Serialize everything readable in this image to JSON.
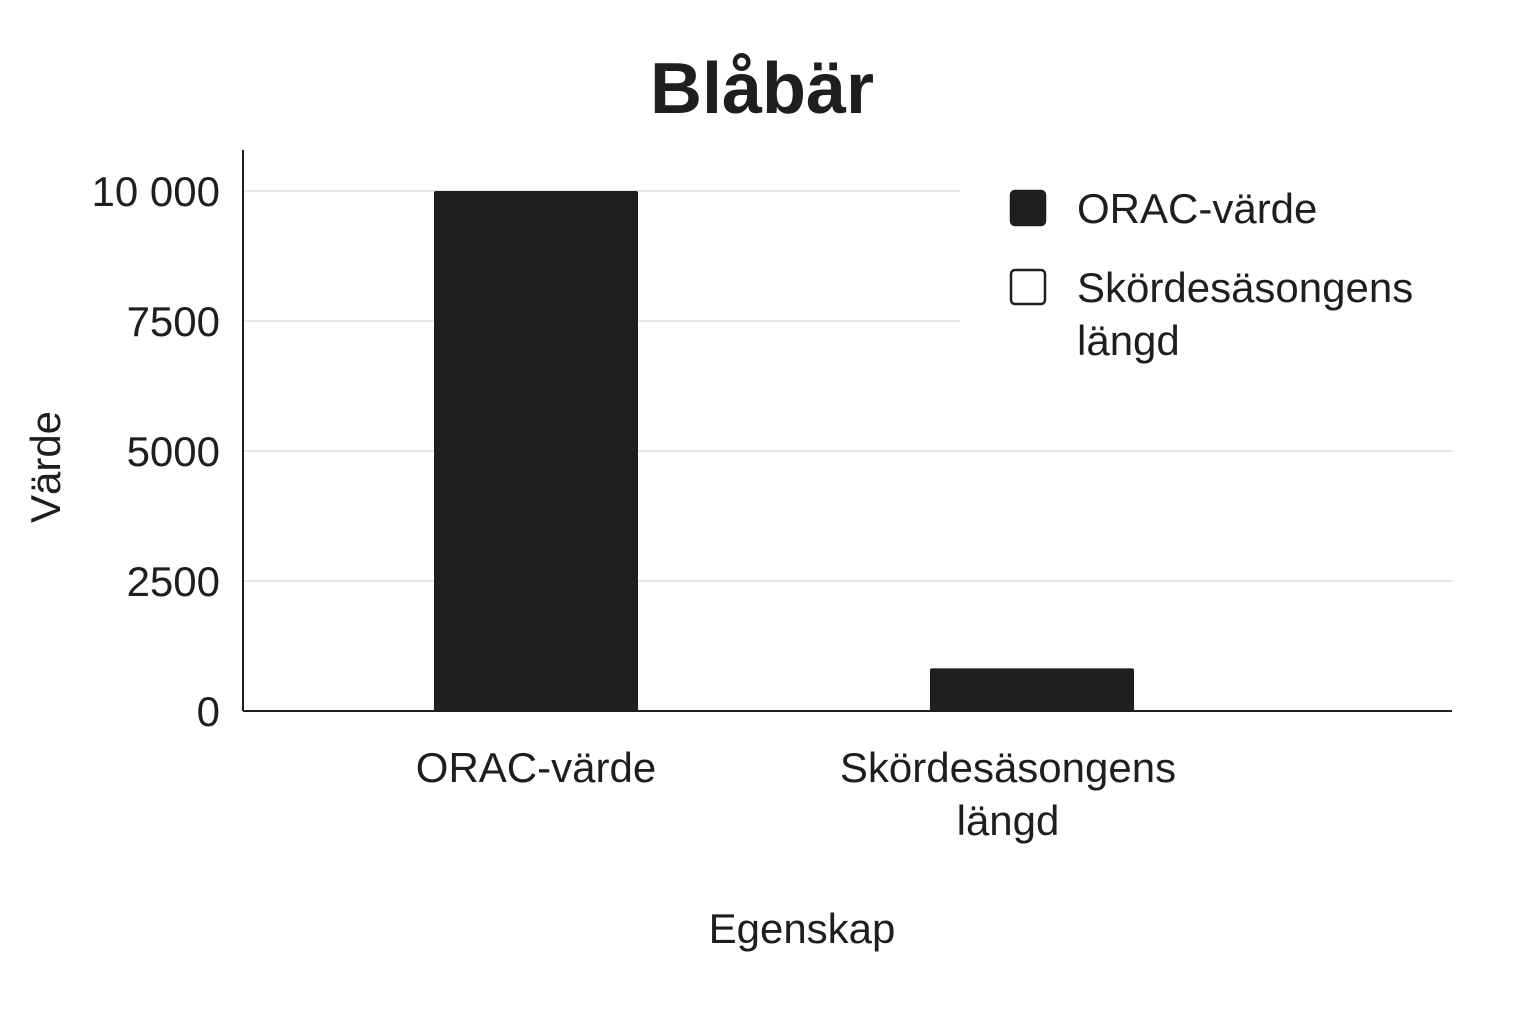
{
  "chart_data": {
    "type": "bar",
    "title": "Blåbär",
    "xlabel": "Egenskap",
    "ylabel": "Värde",
    "categories": [
      [
        "ORAC-värde"
      ],
      [
        "Skördesäsongens",
        "längd"
      ]
    ],
    "series": [
      {
        "name": "ORAC-värde",
        "values": [
          10000,
          0
        ],
        "color": "#1e1e1e"
      },
      {
        "name": "Skördesäsongens längd",
        "values": [
          0,
          820
        ],
        "color": "#1e1e1e"
      }
    ],
    "legend": {
      "position": "top-right",
      "entries": [
        {
          "lines": [
            "ORAC-värde"
          ],
          "swatch": "filled",
          "color": "#1e1e1e"
        },
        {
          "lines": [
            "Skördesäsongens",
            "längd"
          ],
          "swatch": "outline",
          "color": "#1e1e1e"
        }
      ]
    },
    "yticks": [
      0,
      2500,
      5000,
      7500,
      10000
    ],
    "ytick_labels": [
      "0",
      "2500",
      "5000",
      "7500",
      "10 000"
    ],
    "ylim": [
      0,
      10800
    ],
    "grid": true,
    "colors": {
      "bar": "#1e1e1e",
      "grid": "#e6e6e6",
      "axis": "#1e1e1e",
      "text": "#1e1e1e"
    }
  }
}
